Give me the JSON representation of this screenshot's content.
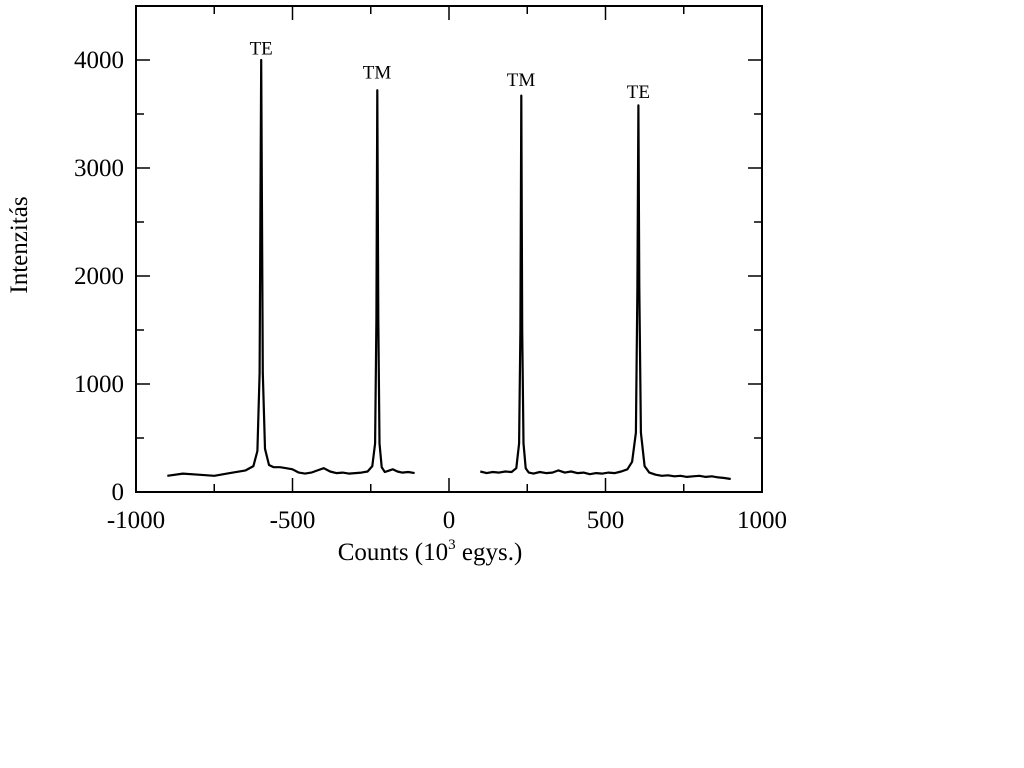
{
  "chart_data": {
    "type": "line",
    "xlabel": "Counts (10",
    "xlabel_sup": "3",
    "xlabel_tail": " egys.)",
    "ylabel": "Intenzitás",
    "xlim": [
      -1000,
      1000
    ],
    "ylim": [
      0,
      4500
    ],
    "xticks": [
      -1000,
      -500,
      0,
      500,
      1000
    ],
    "xtick_labels": [
      "-1000",
      "-500",
      "0",
      "500",
      "1000"
    ],
    "yticks": [
      0,
      1000,
      2000,
      3000,
      4000
    ],
    "ytick_labels": [
      "0",
      "1000",
      "2000",
      "3000",
      "4000"
    ],
    "grid": false,
    "legend": "none",
    "line_color": "#000000",
    "annotations": [
      {
        "text": "TE",
        "x": -600,
        "y": 4050
      },
      {
        "text": "TM",
        "x": -230,
        "y": 3830
      },
      {
        "text": "TM",
        "x": 230,
        "y": 3760
      },
      {
        "text": "TE",
        "x": 605,
        "y": 3650
      }
    ],
    "series": [
      {
        "segments": [
          {
            "x": [
              -900,
              -850,
              -800,
              -750,
              -700,
              -650,
              -625,
              -612,
              -605,
              -600,
              -595,
              -588,
              -575,
              -560,
              -540,
              -520,
              -500,
              -480,
              -460,
              -440,
              -420,
              -400,
              -380,
              -360,
              -340,
              -320,
              -300,
              -280,
              -260,
              -245,
              -236,
              -232,
              -229,
              -226,
              -222,
              -215,
              -205,
              -195,
              -180,
              -165,
              -150,
              -130,
              -110
            ],
            "y": [
              150,
              170,
              160,
              150,
              175,
              200,
              240,
              380,
              1100,
              4000,
              1100,
              400,
              250,
              230,
              230,
              220,
              210,
              180,
              170,
              180,
              200,
              220,
              190,
              175,
              180,
              170,
              175,
              180,
              190,
              240,
              450,
              1600,
              3720,
              1600,
              450,
              230,
              185,
              195,
              210,
              190,
              180,
              185,
              175
            ]
          },
          {
            "x": [
              100,
              120,
              140,
              160,
              180,
              200,
              215,
              224,
              228,
              231,
              234,
              238,
              245,
              255,
              270,
              290,
              310,
              330,
              350,
              370,
              390,
              410,
              430,
              450,
              470,
              490,
              510,
              530,
              550,
              570,
              585,
              597,
              602,
              605,
              608,
              613,
              625,
              640,
              660,
              680,
              700,
              720,
              740,
              760,
              780,
              800,
              820,
              840,
              860,
              880,
              900
            ],
            "y": [
              190,
              175,
              185,
              180,
              190,
              185,
              220,
              450,
              1500,
              3670,
              1500,
              450,
              220,
              180,
              170,
              185,
              175,
              180,
              200,
              180,
              190,
              175,
              180,
              165,
              175,
              170,
              180,
              175,
              190,
              210,
              280,
              550,
              1900,
              3580,
              1900,
              550,
              240,
              180,
              160,
              150,
              155,
              145,
              150,
              140,
              145,
              150,
              140,
              145,
              135,
              130,
              120
            ]
          }
        ]
      }
    ]
  }
}
